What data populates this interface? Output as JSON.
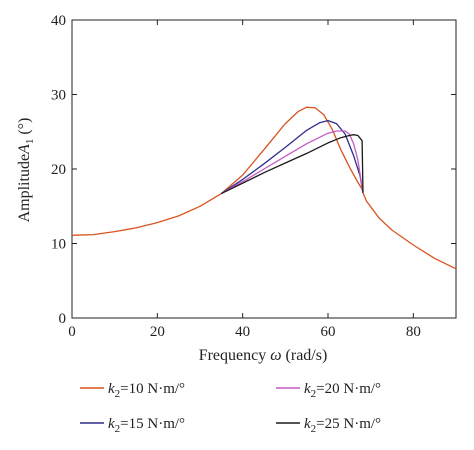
{
  "chart_data": {
    "type": "line",
    "xlabel_prefix": "Frequency ",
    "xlabel_symbol": "ω",
    "xlabel_suffix": " (rad/s)",
    "ylabel_text": "Amplitude",
    "ylabel_symbol": "A",
    "ylabel_sub": "1",
    "ylabel_suffix": " (°)",
    "xlim": [
      0,
      90
    ],
    "ylim": [
      0,
      40
    ],
    "xticks": [
      0,
      20,
      40,
      60,
      80
    ],
    "yticks": [
      0,
      10,
      20,
      30,
      40
    ],
    "grid": false,
    "legend_position": "bottom",
    "legend_prefix_symbol": "k",
    "legend_prefix_sub": "2",
    "series": [
      {
        "name": "=10 N·m/°",
        "color": "#d9531e",
        "x": [
          0,
          5,
          10,
          15,
          20,
          25,
          30,
          35,
          40,
          45,
          50,
          53,
          55,
          57,
          59,
          61,
          63,
          65,
          67,
          68,
          68.2,
          69,
          72,
          75,
          80,
          85,
          90
        ],
        "y": [
          11.1,
          11.2,
          11.6,
          12.1,
          12.8,
          13.7,
          15.0,
          16.7,
          19.2,
          22.6,
          26.1,
          27.7,
          28.3,
          28.2,
          27.3,
          25.3,
          22.6,
          20.3,
          18.2,
          17.3,
          16.8,
          15.7,
          13.4,
          11.8,
          9.8,
          8.0,
          6.6
        ]
      },
      {
        "name": "=15 N·m/°",
        "color": "#2e2d8c",
        "x": [
          35,
          40,
          45,
          50,
          55,
          58,
          60,
          62,
          64,
          66,
          67.5,
          68.2
        ],
        "y": [
          16.7,
          18.6,
          20.7,
          22.9,
          25.2,
          26.2,
          26.5,
          26.1,
          24.7,
          21.8,
          19.1,
          16.8
        ]
      },
      {
        "name": "=20 N·m/°",
        "color": "#c45ac4",
        "x": [
          35,
          40,
          45,
          50,
          55,
          60,
          62,
          64,
          65,
          66,
          67,
          68.2
        ],
        "y": [
          16.7,
          18.3,
          20.0,
          21.7,
          23.4,
          24.8,
          25.1,
          25.1,
          24.7,
          23.4,
          21.2,
          16.8
        ]
      },
      {
        "name": "=25 N·m/°",
        "color": "#1a1a1a",
        "x": [
          35,
          40,
          45,
          50,
          55,
          60,
          63,
          65,
          66,
          67,
          68,
          68.2
        ],
        "y": [
          16.7,
          18.1,
          19.5,
          20.8,
          22.1,
          23.5,
          24.2,
          24.5,
          24.6,
          24.5,
          23.8,
          16.8
        ]
      }
    ]
  }
}
